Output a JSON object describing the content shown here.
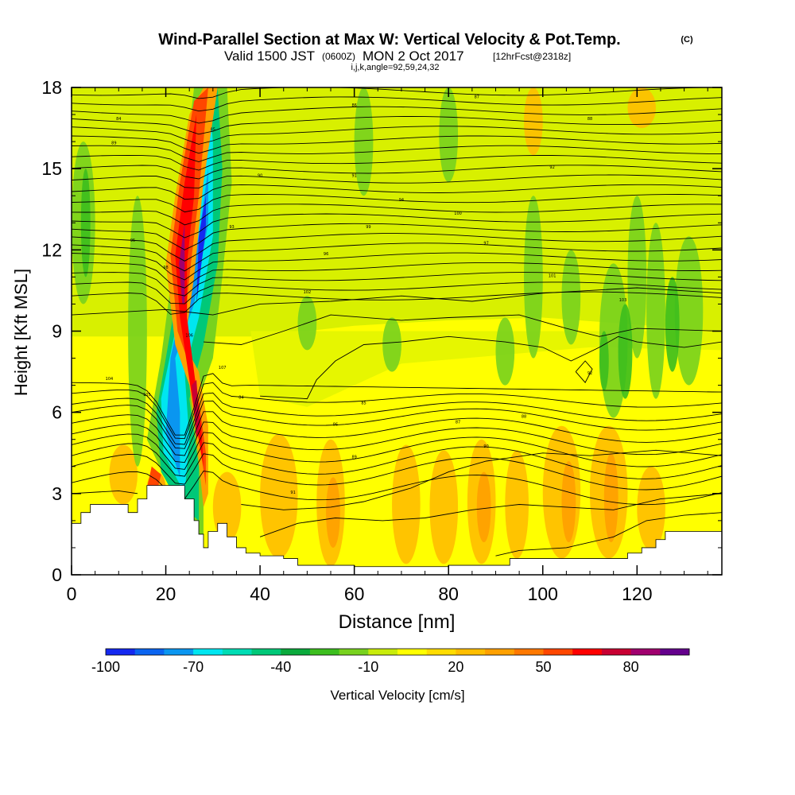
{
  "header": {
    "title": "Wind-Parallel Section at Max W: Vertical Velocity & Pot.Temp.",
    "copyright_mark": "(C)",
    "valid_prefix": "Valid 1500 JST",
    "valid_utc": "(0600Z)",
    "valid_date": "MON 2 Oct 2017",
    "forecast": "[12hrFcst@2318z]",
    "indices": "i,j,k,angle=92,59,24,32"
  },
  "chart_data": {
    "type": "heatmap",
    "title": "Wind-Parallel Section at Max W: Vertical Velocity & Pot.Temp.",
    "xlabel": "Distance [nm]",
    "ylabel": "Height [Kft MSL]",
    "xlim": [
      0,
      138
    ],
    "ylim": [
      0,
      18
    ],
    "xticks": [
      0,
      20,
      40,
      60,
      80,
      100,
      120
    ],
    "yticks": [
      0,
      3,
      6,
      9,
      12,
      15,
      18
    ],
    "grid": false,
    "colorbar": {
      "label": "Vertical Velocity [cm/s]",
      "tick_labels": [
        "-100",
        "-70",
        "-40",
        "-10",
        "20",
        "50",
        "80"
      ],
      "tick_values": [
        -100,
        -70,
        -40,
        -10,
        20,
        50,
        80
      ],
      "levels": [
        -100,
        -90,
        -80,
        -70,
        -60,
        -50,
        -40,
        -30,
        -20,
        -10,
        0,
        10,
        20,
        30,
        40,
        50,
        60,
        70,
        80,
        90,
        100
      ],
      "colors": [
        "#1428f0",
        "#0a64f0",
        "#0a96f0",
        "#00e6f0",
        "#00dcb4",
        "#00c878",
        "#0aaa3c",
        "#3cbe1e",
        "#78d21e",
        "#c8ec0a",
        "#ffff00",
        "#ffdc00",
        "#ffbe00",
        "#ffa000",
        "#ff7800",
        "#ff4600",
        "#ff0000",
        "#c80032",
        "#a0006e",
        "#64008c"
      ]
    },
    "terrain_kft": [
      [
        0,
        1.9
      ],
      [
        2,
        2.3
      ],
      [
        4,
        2.6
      ],
      [
        10,
        2.6
      ],
      [
        12,
        2.3
      ],
      [
        14,
        2.8
      ],
      [
        16,
        3.3
      ],
      [
        22,
        3.3
      ],
      [
        24,
        2.8
      ],
      [
        26,
        2.0
      ],
      [
        27,
        1.5
      ],
      [
        28,
        1.0
      ],
      [
        29,
        1.6
      ],
      [
        31,
        1.9
      ],
      [
        33,
        1.4
      ],
      [
        35,
        1.0
      ],
      [
        37,
        0.8
      ],
      [
        40,
        0.7
      ],
      [
        45,
        0.6
      ],
      [
        48,
        0.35
      ],
      [
        55,
        0.35
      ],
      [
        60,
        0.3
      ],
      [
        70,
        0.3
      ],
      [
        80,
        0.35
      ],
      [
        85,
        0.35
      ],
      [
        88,
        0.35
      ],
      [
        90,
        0.35
      ],
      [
        93,
        0.6
      ],
      [
        100,
        0.6
      ],
      [
        110,
        0.6
      ],
      [
        115,
        0.6
      ],
      [
        118,
        0.8
      ],
      [
        121,
        1.0
      ],
      [
        124,
        1.3
      ],
      [
        126,
        1.6
      ],
      [
        138,
        1.6
      ]
    ],
    "theta_label_sample": [
      "84",
      "85",
      "86",
      "87",
      "88",
      "89",
      "90",
      "91",
      "92",
      "93",
      "94",
      "95",
      "96",
      "97",
      "98",
      "99",
      "100",
      "101",
      "102",
      "103",
      "104",
      "105",
      "106",
      "107"
    ]
  }
}
